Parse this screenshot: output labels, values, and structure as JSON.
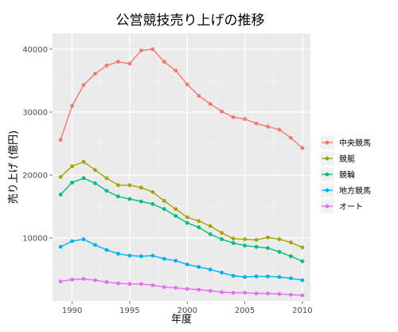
{
  "chart_data": {
    "type": "line",
    "title": "公営競技売り上げの推移",
    "xlabel": "年度",
    "ylabel": "売り上げ (億円)",
    "xlim": [
      1988.3,
      2010.7
    ],
    "ylim": [
      0,
      42500
    ],
    "x_ticks": [
      1990,
      1995,
      2000,
      2005,
      2010
    ],
    "y_ticks": [
      10000,
      20000,
      30000,
      40000
    ],
    "grid": true,
    "legend_position": "right",
    "x": [
      1989,
      1990,
      1991,
      1992,
      1993,
      1994,
      1995,
      1996,
      1997,
      1998,
      1999,
      2000,
      2001,
      2002,
      2003,
      2004,
      2005,
      2006,
      2007,
      2008,
      2009,
      2010
    ],
    "series": [
      {
        "name": "中央競馬",
        "color": "#F8766D",
        "values": [
          25600,
          31000,
          34300,
          36100,
          37400,
          38000,
          37700,
          39800,
          40000,
          38000,
          36600,
          34400,
          32600,
          31300,
          30100,
          29200,
          28900,
          28200,
          27700,
          27200,
          25900,
          24300
        ]
      },
      {
        "name": "競艇",
        "color": "#A3A500",
        "values": [
          19700,
          21400,
          22100,
          20800,
          19500,
          18400,
          18400,
          18000,
          17300,
          15900,
          14600,
          13300,
          12700,
          11900,
          10800,
          9900,
          9800,
          9700,
          10100,
          9800,
          9300,
          8500
        ]
      },
      {
        "name": "競輪",
        "color": "#00BF7D",
        "values": [
          16900,
          18800,
          19500,
          18700,
          17500,
          16600,
          16200,
          15800,
          15400,
          14600,
          13500,
          12400,
          11700,
          10600,
          9800,
          9200,
          8800,
          8600,
          8400,
          7800,
          7100,
          6300
        ]
      },
      {
        "name": "地方競馬",
        "color": "#00B0F6",
        "values": [
          8600,
          9500,
          9800,
          8900,
          8100,
          7500,
          7200,
          7100,
          7200,
          6700,
          6400,
          5800,
          5400,
          5000,
          4500,
          4000,
          3800,
          3900,
          3900,
          3800,
          3600,
          3300
        ]
      },
      {
        "name": "オート",
        "color": "#E76BF3",
        "values": [
          3100,
          3400,
          3500,
          3300,
          3000,
          2800,
          2700,
          2700,
          2500,
          2200,
          2100,
          1900,
          1800,
          1600,
          1400,
          1300,
          1300,
          1200,
          1200,
          1100,
          1000,
          900
        ]
      }
    ]
  },
  "colors": {
    "panel": "#ebebeb",
    "grid_major": "#ffffff",
    "grid_minor": "#f5f5f5",
    "legend_key": "#f2f2f2"
  }
}
